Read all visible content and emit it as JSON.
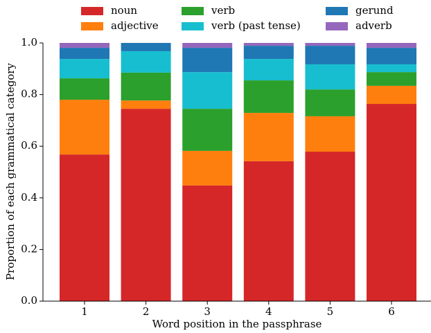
{
  "chart_data": {
    "type": "stacked-bar",
    "xlabel": "Word position in the passphrase",
    "ylabel": "Proportion of each grammatical category",
    "categories": [
      "1",
      "2",
      "3",
      "4",
      "5",
      "6"
    ],
    "series": [
      {
        "name": "noun",
        "color": "#d62728",
        "values": [
          0.568,
          0.745,
          0.448,
          0.542,
          0.579,
          0.764
        ]
      },
      {
        "name": "adjective",
        "color": "#ff7f0e",
        "values": [
          0.212,
          0.032,
          0.134,
          0.187,
          0.137,
          0.07
        ]
      },
      {
        "name": "verb",
        "color": "#2ca02c",
        "values": [
          0.083,
          0.108,
          0.163,
          0.126,
          0.104,
          0.053
        ]
      },
      {
        "name": "verb (past tense)",
        "color": "#17becf",
        "values": [
          0.075,
          0.083,
          0.142,
          0.083,
          0.097,
          0.03
        ]
      },
      {
        "name": "gerund",
        "color": "#1f77b4",
        "values": [
          0.043,
          0.032,
          0.094,
          0.051,
          0.072,
          0.064
        ]
      },
      {
        "name": "adverb",
        "color": "#9467bd",
        "values": [
          0.019,
          0,
          0.019,
          0.011,
          0.011,
          0.019
        ]
      }
    ],
    "ylim": [
      0,
      1
    ],
    "yticks": [
      {
        "value": 0,
        "label": "0.0"
      },
      0.2,
      0.4,
      0.6,
      0.8,
      {
        "value": 1,
        "label": "1.0"
      }
    ],
    "legend": "top",
    "legend_columns": 3
  }
}
